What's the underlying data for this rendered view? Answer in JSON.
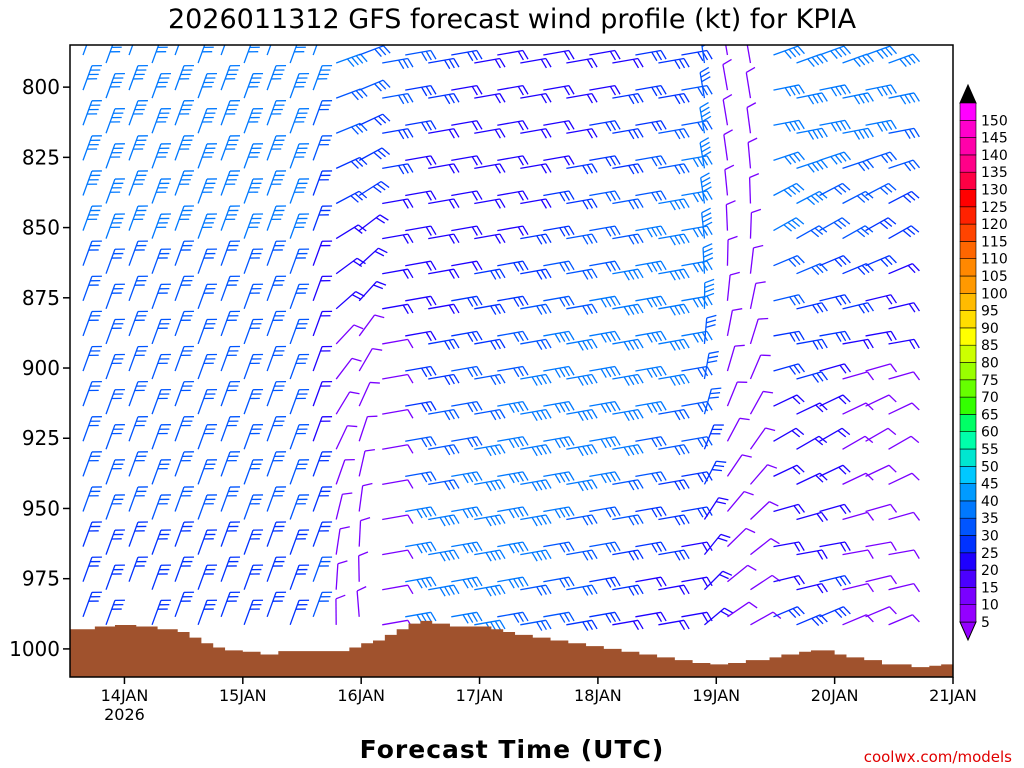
{
  "chart_data": {
    "type": "wind-profile",
    "title": "2026011312 GFS forecast wind profile (kt) for KPIA",
    "xlabel": "Forecast Time (UTC)",
    "ylabel": "",
    "credit": "coolwx.com/models",
    "y_ticks": [
      "800",
      "825",
      "850",
      "875",
      "900",
      "925",
      "950",
      "975",
      "1000"
    ],
    "x_ticks": [
      "14JAN",
      "15JAN",
      "16JAN",
      "17JAN",
      "18JAN",
      "19JAN",
      "20JAN",
      "21JAN"
    ],
    "x_first_sub": "2026",
    "ylim": [
      1010,
      785
    ],
    "xlim_days": [
      -0.46,
      7.0
    ],
    "colorbar_labels": [
      "5",
      "10",
      "15",
      "20",
      "25",
      "30",
      "35",
      "40",
      "45",
      "50",
      "55",
      "60",
      "65",
      "70",
      "75",
      "80",
      "85",
      "90",
      "95",
      "100",
      "105",
      "110",
      "115",
      "120",
      "125",
      "130",
      "135",
      "140",
      "145",
      "150"
    ],
    "colorbar_colors": [
      "#9400ff",
      "#7a00ff",
      "#4b00ff",
      "#1e00ff",
      "#0032ff",
      "#0055ff",
      "#0078ff",
      "#009bff",
      "#00c8ff",
      "#00e6d0",
      "#00ffaa",
      "#00ff66",
      "#33ff00",
      "#66ff00",
      "#99ff00",
      "#ccff00",
      "#ffff00",
      "#ffdd00",
      "#ffbb00",
      "#ff9900",
      "#ff8800",
      "#ff6600",
      "#ff4400",
      "#ff2200",
      "#ff0000",
      "#ff0044",
      "#ff0088",
      "#ff00aa",
      "#ff00cc",
      "#ff00ff"
    ],
    "surface_pressure_steps": [
      [
        -0.46,
        993
      ],
      [
        -0.25,
        992
      ],
      [
        -0.08,
        991.5
      ],
      [
        0.1,
        992
      ],
      [
        0.28,
        993
      ],
      [
        0.45,
        994
      ],
      [
        0.55,
        996
      ],
      [
        0.65,
        998
      ],
      [
        0.75,
        999.5
      ],
      [
        0.85,
        1000.5
      ],
      [
        1.0,
        1001
      ],
      [
        1.15,
        1002
      ],
      [
        1.3,
        1000.8
      ],
      [
        1.5,
        1000.8
      ],
      [
        1.75,
        1000.8
      ],
      [
        1.9,
        999.5
      ],
      [
        2.0,
        998
      ],
      [
        2.1,
        997
      ],
      [
        2.2,
        995
      ],
      [
        2.3,
        993
      ],
      [
        2.4,
        991
      ],
      [
        2.5,
        990
      ],
      [
        2.6,
        991
      ],
      [
        2.75,
        992
      ],
      [
        3.0,
        992
      ],
      [
        3.1,
        993
      ],
      [
        3.2,
        994
      ],
      [
        3.3,
        995
      ],
      [
        3.45,
        996
      ],
      [
        3.6,
        997
      ],
      [
        3.75,
        998
      ],
      [
        3.9,
        999
      ],
      [
        4.05,
        1000
      ],
      [
        4.2,
        1001
      ],
      [
        4.35,
        1002
      ],
      [
        4.5,
        1003
      ],
      [
        4.65,
        1004
      ],
      [
        4.8,
        1005
      ],
      [
        4.95,
        1005.5
      ],
      [
        5.1,
        1005
      ],
      [
        5.25,
        1004
      ],
      [
        5.45,
        1003
      ],
      [
        5.55,
        1002
      ],
      [
        5.7,
        1001
      ],
      [
        5.8,
        1000.5
      ],
      [
        6.0,
        1002
      ],
      [
        6.1,
        1003
      ],
      [
        6.25,
        1004
      ],
      [
        6.4,
        1005.5
      ],
      [
        6.65,
        1006.5
      ],
      [
        6.8,
        1006
      ],
      [
        6.9,
        1005.5
      ],
      [
        7.0,
        1005
      ]
    ]
  }
}
